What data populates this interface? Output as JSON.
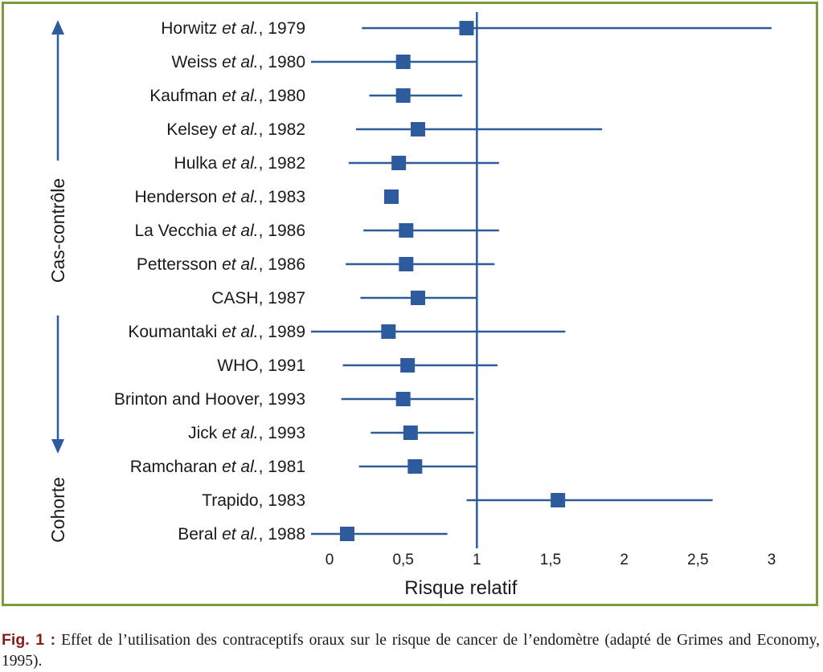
{
  "chart_data": {
    "type": "forest",
    "xlabel": "Risque relatif",
    "ylabel": "",
    "xlim": [
      0,
      3
    ],
    "reference_line": 1,
    "x_ticks": [
      "0",
      "0,5",
      "1",
      "1,5",
      "2",
      "2,5",
      "3"
    ],
    "x_tick_values": [
      0,
      0.5,
      1,
      1.5,
      2,
      2.5,
      3
    ],
    "groups": [
      {
        "name": "Cas-contrôle",
        "direction": "up"
      },
      {
        "name": "Cohorte",
        "direction": "down"
      }
    ],
    "studies": [
      {
        "author": "Horwitz",
        "et_al": "et al.",
        "year": ", 1979",
        "rr": 0.93,
        "low": 0.22,
        "high": 3.1
      },
      {
        "author": "Weiss",
        "et_al": "et al.",
        "year": ", 1980",
        "rr": 0.5,
        "low": 0.0,
        "high": 1.0
      },
      {
        "author": "Kaufman",
        "et_al": "et al.",
        "year": ", 1980",
        "rr": 0.5,
        "low": 0.27,
        "high": 0.9
      },
      {
        "author": "Kelsey",
        "et_al": "et al.",
        "year": ", 1982",
        "rr": 0.6,
        "low": 0.18,
        "high": 1.85
      },
      {
        "author": "Hulka",
        "et_al": "et al.",
        "year": ", 1982",
        "rr": 0.47,
        "low": 0.13,
        "high": 1.15
      },
      {
        "author": "Henderson",
        "et_al": "et al.",
        "year": ", 1983",
        "rr": 0.42,
        "low": null,
        "high": null
      },
      {
        "author": "La Vecchia",
        "et_al": "et al.",
        "year": ", 1986",
        "rr": 0.52,
        "low": 0.23,
        "high": 1.15
      },
      {
        "author": "Pettersson",
        "et_al": "et al.",
        "year": ", 1986",
        "rr": 0.52,
        "low": 0.11,
        "high": 1.12
      },
      {
        "author": "CASH",
        "et_al": "",
        "year": ", 1987",
        "rr": 0.6,
        "low": 0.21,
        "high": 1.0
      },
      {
        "author": "Koumantaki",
        "et_al": "et al.",
        "year": ", 1989",
        "rr": 0.4,
        "low": 0.0,
        "high": 1.6
      },
      {
        "author": "WHO",
        "et_al": "",
        "year": ", 1991",
        "rr": 0.53,
        "low": 0.09,
        "high": 1.14
      },
      {
        "author": "Brinton and Hoover",
        "et_al": "",
        "year": ", 1993",
        "rr": 0.5,
        "low": 0.08,
        "high": 0.98
      },
      {
        "author": "Jick",
        "et_al": "et al.",
        "year": ", 1993",
        "rr": 0.55,
        "low": 0.28,
        "high": 0.98
      },
      {
        "author": "Ramcharan",
        "et_al": "et al.",
        "year": ", 1981",
        "rr": 0.58,
        "low": 0.2,
        "high": 1.0
      },
      {
        "author": "Trapido",
        "et_al": "",
        "year": ", 1983",
        "rr": 1.55,
        "low": 0.93,
        "high": 2.6
      },
      {
        "author": "Beral",
        "et_al": "et al.",
        "year": ", 1988",
        "rr": 0.12,
        "low": 0.0,
        "high": 0.8
      }
    ],
    "colors": {
      "marker": "#2e5a9e",
      "line": "#2e5a9e",
      "frame": "#7a9a3c"
    }
  },
  "caption": {
    "label": "Fig. 1 :",
    "text": "Effet de l’utilisation des contraceptifs oraux sur le risque de cancer de l’endomètre (adapté de Grimes and Economy, 1995)."
  }
}
